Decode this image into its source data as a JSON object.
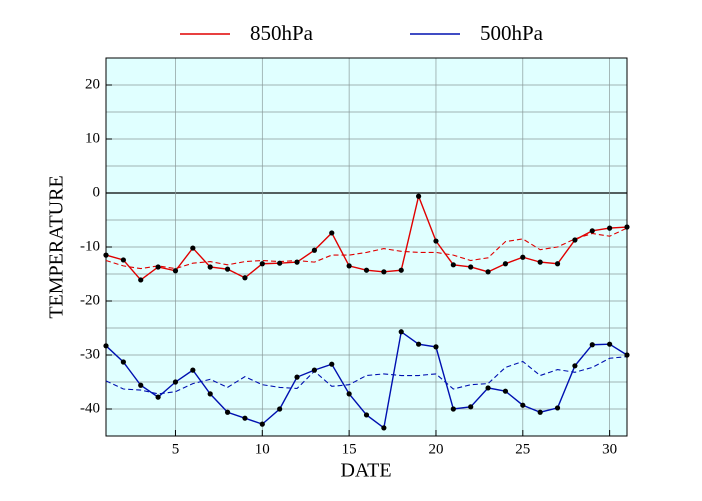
{
  "chart_data": {
    "type": "line",
    "xlabel": "DATE",
    "ylabel": "TEMPERATURE",
    "x": [
      1,
      2,
      3,
      4,
      5,
      6,
      7,
      8,
      9,
      10,
      11,
      12,
      13,
      14,
      15,
      16,
      17,
      18,
      19,
      20,
      21,
      22,
      23,
      24,
      25,
      26,
      27,
      28,
      29,
      30,
      31
    ],
    "series": [
      {
        "name": "850hPa",
        "color": "#e00000",
        "values": [
          -11.5,
          -12.4,
          -16.1,
          -13.7,
          -14.4,
          -10.2,
          -13.7,
          -14.1,
          -15.7,
          -13.1,
          -13.0,
          -12.8,
          -10.6,
          -7.4,
          -13.5,
          -14.3,
          -14.6,
          -14.3,
          -0.6,
          -8.9,
          -13.3,
          -13.7,
          -14.6,
          -13.1,
          -11.9,
          -12.8,
          -13.1,
          -8.7,
          -7.0,
          -6.5,
          -6.3
        ],
        "dashed_values": [
          -12.5,
          -13.5,
          -14.0,
          -13.5,
          -14.0,
          -13.0,
          -12.7,
          -13.3,
          -12.7,
          -12.5,
          -12.7,
          -12.5,
          -12.8,
          -11.5,
          -11.5,
          -11.0,
          -10.3,
          -10.8,
          -11.0,
          -11.0,
          -11.5,
          -12.5,
          -12.0,
          -9.0,
          -8.5,
          -10.5,
          -10.0,
          -8.5,
          -7.5,
          -8.0,
          -6.5
        ]
      },
      {
        "name": "500hPa",
        "color": "#0010b0",
        "values": [
          -28.3,
          -31.3,
          -35.6,
          -37.8,
          -35.0,
          -32.8,
          -37.2,
          -40.6,
          -41.7,
          -42.8,
          -40.0,
          -34.1,
          -32.8,
          -31.7,
          -37.2,
          -41.1,
          -43.5,
          -25.7,
          -28.0,
          -28.5,
          -40.0,
          -39.6,
          -36.1,
          -36.7,
          -39.3,
          -40.6,
          -39.8,
          -32.0,
          -28.1,
          -28.0,
          -30.0
        ],
        "dashed_values": [
          -34.8,
          -36.3,
          -36.5,
          -37.2,
          -36.8,
          -35.3,
          -34.5,
          -36.0,
          -34.0,
          -35.5,
          -36.0,
          -36.2,
          -33.0,
          -35.8,
          -35.5,
          -33.8,
          -33.5,
          -33.8,
          -33.8,
          -33.5,
          -36.3,
          -35.5,
          -35.3,
          -32.3,
          -31.2,
          -33.8,
          -32.7,
          -33.2,
          -32.3,
          -30.6,
          -30.3
        ]
      }
    ],
    "xlim": [
      1,
      31
    ],
    "xticks": [
      5,
      10,
      15,
      20,
      25,
      30
    ],
    "ylim": [
      -45,
      25
    ],
    "yticks": [
      -40,
      -30,
      -20,
      -10,
      0,
      10,
      20
    ],
    "yminorticks": [
      -45,
      -35,
      -25,
      -15,
      -5,
      5,
      15,
      25
    ],
    "grid": true,
    "legend": "top",
    "background": "#e0ffff"
  }
}
